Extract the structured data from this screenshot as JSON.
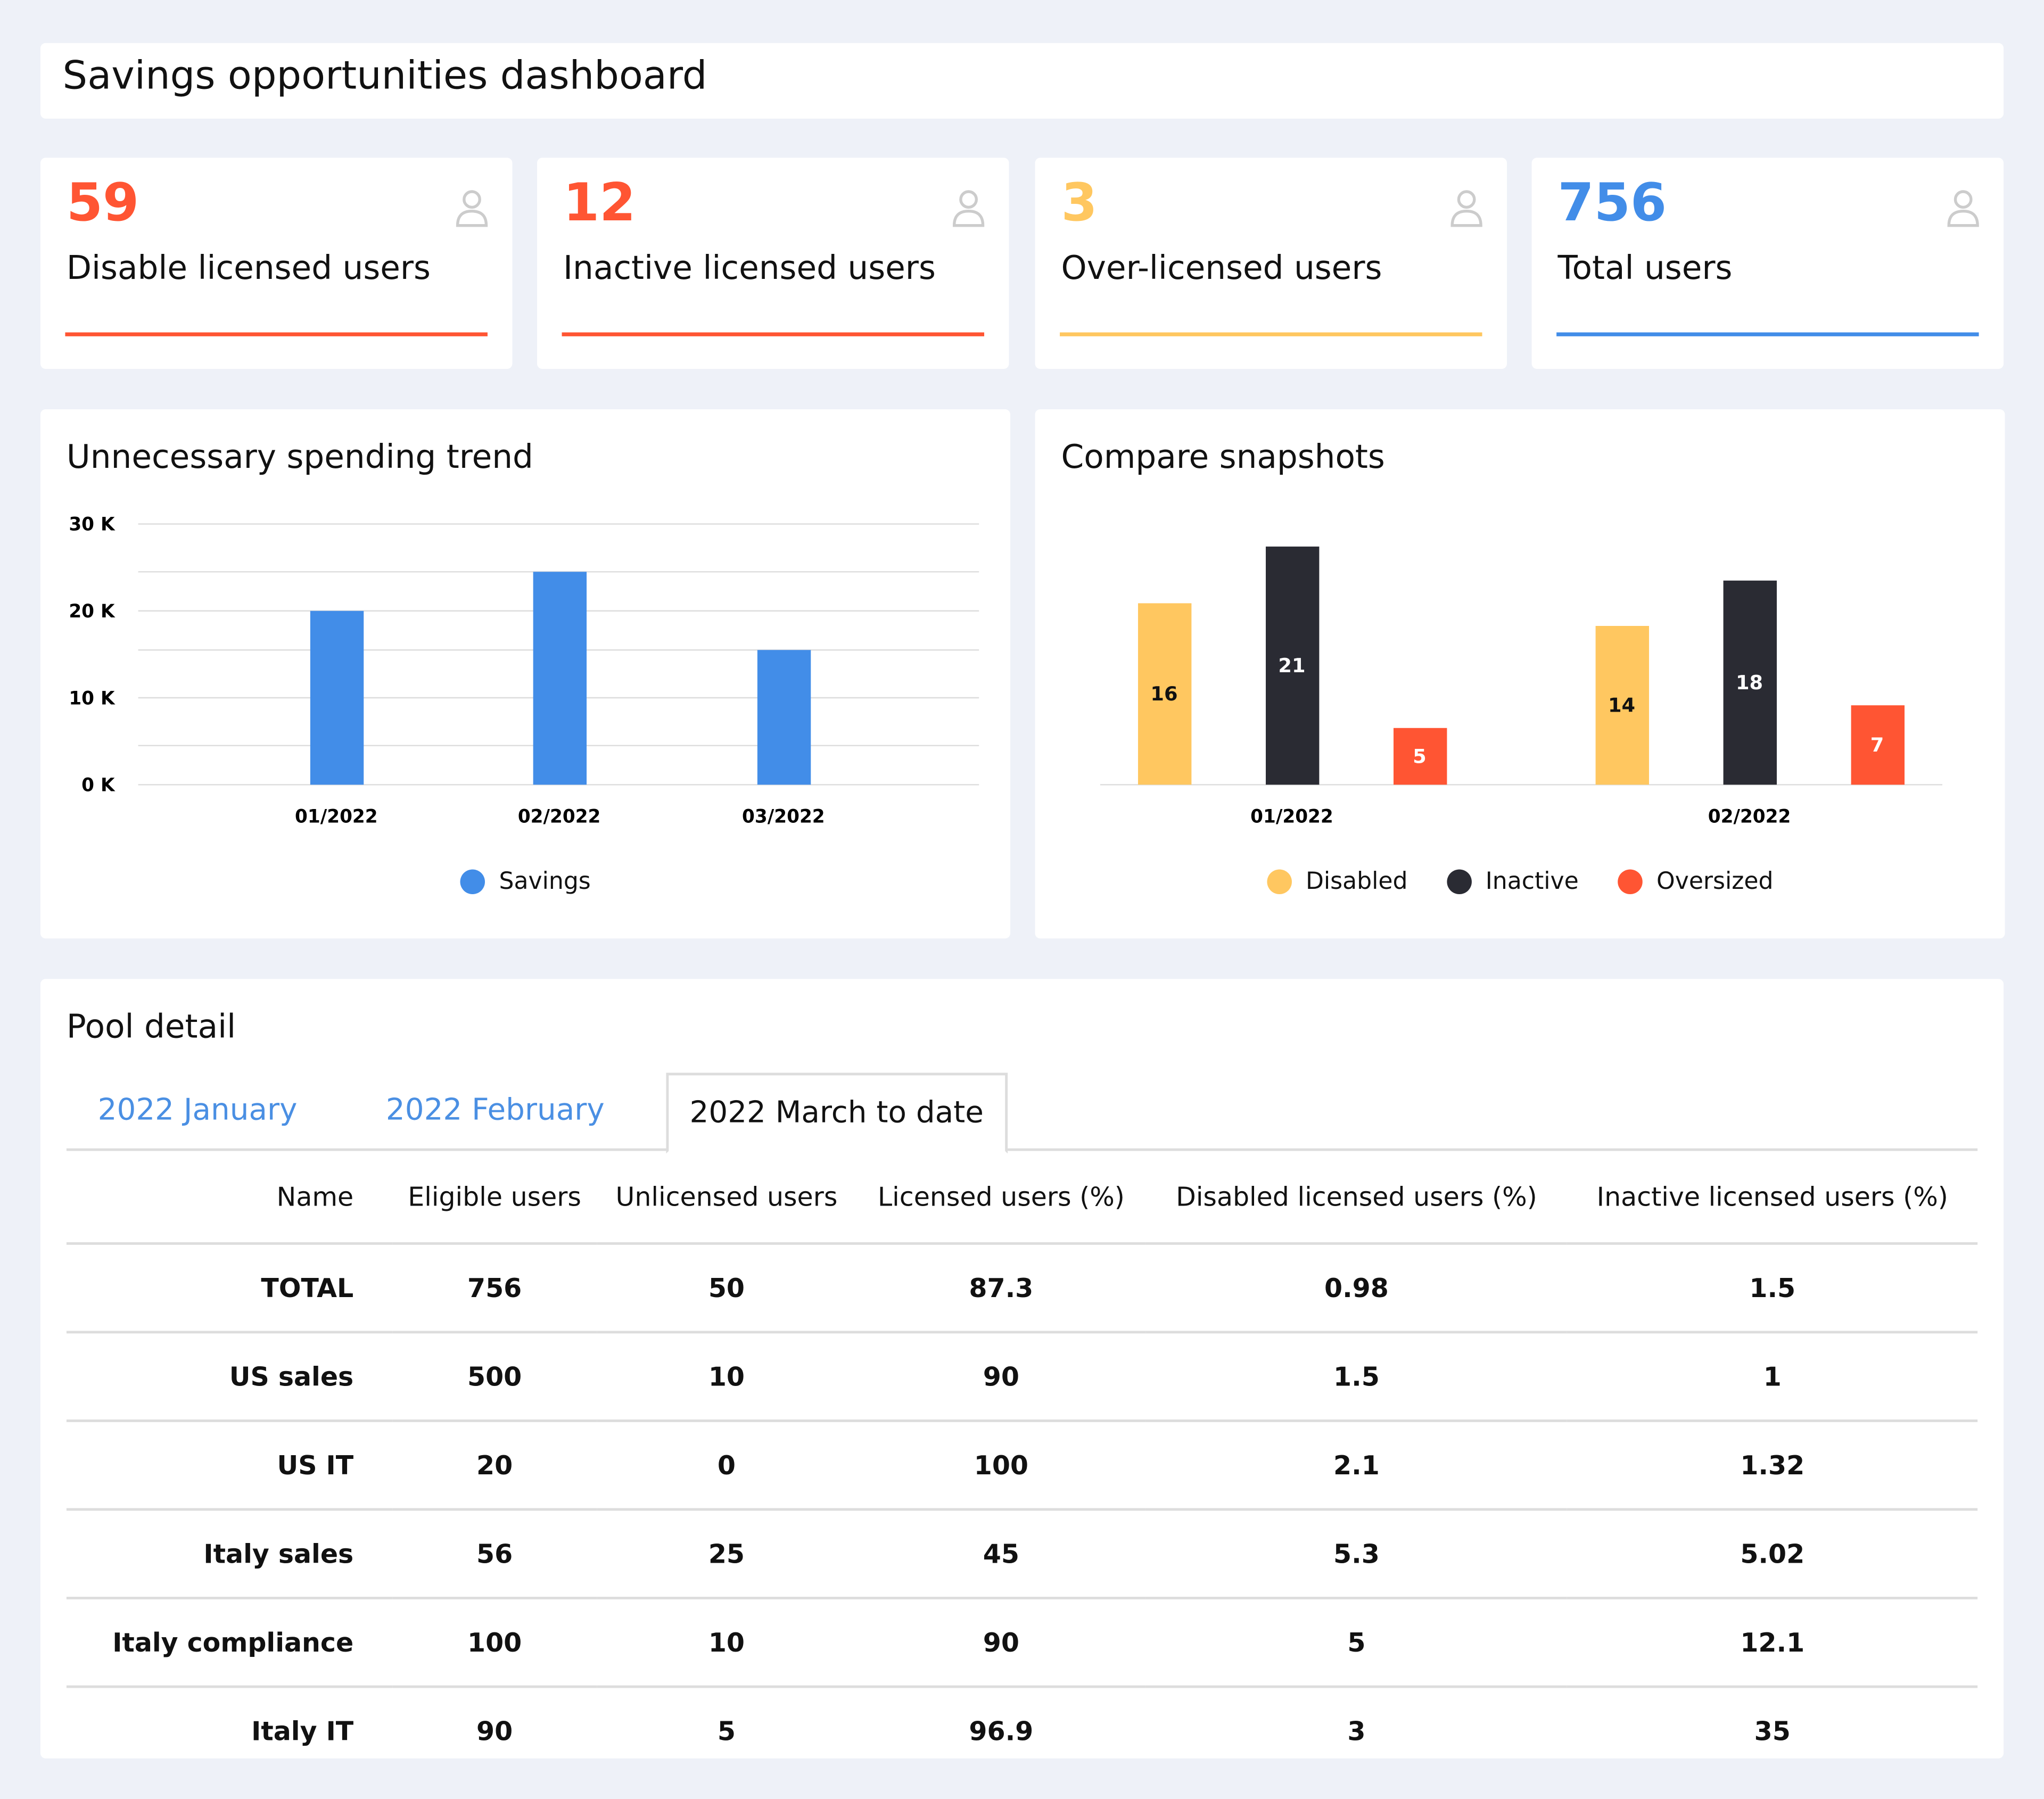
{
  "header": {
    "title": "Savings opportunities dashboard"
  },
  "stats": [
    {
      "value": "59",
      "label": "Disable licensed users",
      "color": "#ff5533",
      "icon": "user-icon"
    },
    {
      "value": "12",
      "label": "Inactive licensed users",
      "color": "#ff5533",
      "icon": "user-icon"
    },
    {
      "value": "3",
      "label": "Over-licensed users",
      "color": "#ffc760",
      "icon": "user-icon"
    },
    {
      "value": "756",
      "label": "Total users",
      "color": "#428de8",
      "icon": "user-icon"
    }
  ],
  "chart_data": [
    {
      "type": "bar",
      "title": "Unnecessary spending trend",
      "categories": [
        "01/2022",
        "02/2022",
        "03/2022"
      ],
      "series": [
        {
          "name": "Savings",
          "values": [
            20000,
            24500,
            15500
          ],
          "color": "#428de8"
        }
      ],
      "yticks": [
        "0 K",
        "10 K",
        "20 K",
        "30 K"
      ],
      "ylim": [
        0,
        30000
      ],
      "grid": true,
      "legend": "bottom"
    },
    {
      "type": "bar",
      "title": "Compare snapshots",
      "categories": [
        "01/2022",
        "02/2022"
      ],
      "series": [
        {
          "name": "Disabled",
          "values": [
            16,
            14
          ],
          "color": "#ffc760"
        },
        {
          "name": "Inactive",
          "values": [
            21,
            18
          ],
          "color": "#2a2b33"
        },
        {
          "name": "Oversized",
          "values": [
            5,
            7
          ],
          "color": "#ff5533"
        }
      ],
      "data_labels": true,
      "grid": false,
      "legend": "bottom"
    }
  ],
  "pool": {
    "title": "Pool detail",
    "tabs": [
      {
        "label": "2022 January",
        "active": false
      },
      {
        "label": "2022 February",
        "active": false
      },
      {
        "label": "2022 March to date",
        "active": true
      }
    ],
    "columns": [
      "Name",
      "Eligible users",
      "Unlicensed users",
      "Licensed users (%)",
      "Disabled licensed users (%)",
      "Inactive licensed users (%)"
    ],
    "rows": [
      [
        "TOTAL",
        "756",
        "50",
        "87.3",
        "0.98",
        "1.5"
      ],
      [
        "US sales",
        "500",
        "10",
        "90",
        "1.5",
        "1"
      ],
      [
        "US IT",
        "20",
        "0",
        "100",
        "2.1",
        "1.32"
      ],
      [
        "Italy sales",
        "56",
        "25",
        "45",
        "5.3",
        "5.02"
      ],
      [
        "Italy compliance",
        "100",
        "10",
        "90",
        "5",
        "12.1"
      ],
      [
        "Italy IT",
        "90",
        "5",
        "96.9",
        "3",
        "35"
      ]
    ]
  }
}
